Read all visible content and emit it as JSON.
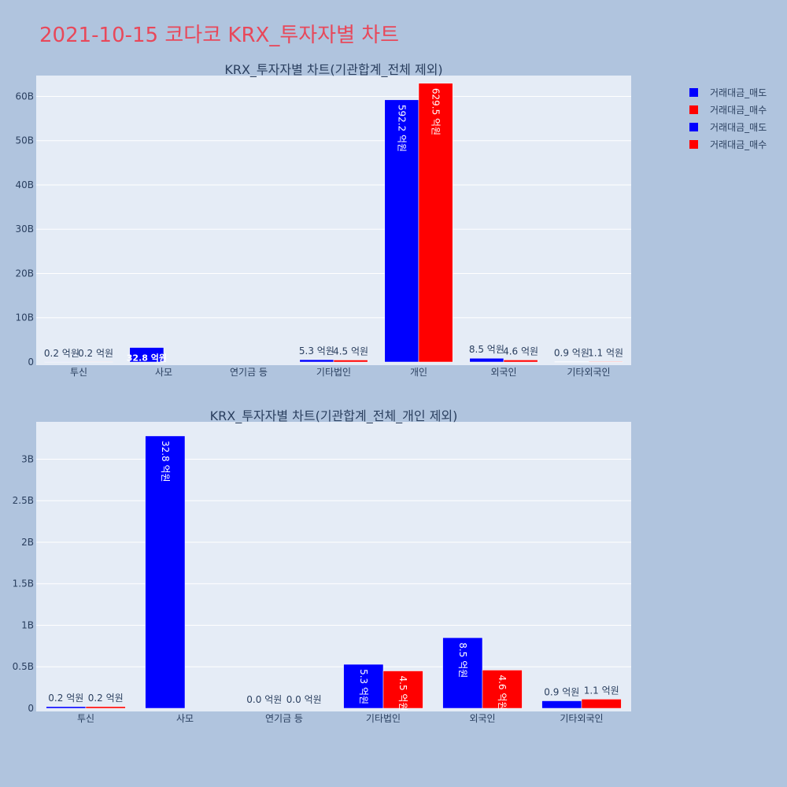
{
  "page": {
    "title": "2021-10-15 코다코 KRX_투자자별 차트"
  },
  "legend": [
    {
      "label": "거래대금_매도",
      "color": "#0000ff"
    },
    {
      "label": "거래대금_매수",
      "color": "#ff0000"
    },
    {
      "label": "거래대금_매도",
      "color": "#0000ff"
    },
    {
      "label": "거래대금_매수",
      "color": "#ff0000"
    }
  ],
  "chart_data": [
    {
      "type": "bar",
      "title": "KRX_투자자별 차트(기관합계_전체 제외)",
      "categories": [
        "투신",
        "사모",
        "연기금 등",
        "기타법인",
        "개인",
        "외국인",
        "기타외국인"
      ],
      "y_ticks": [
        0,
        10,
        20,
        30,
        40,
        50,
        60
      ],
      "y_tick_labels": [
        "0",
        "10B",
        "20B",
        "30B",
        "40B",
        "50B",
        "60B"
      ],
      "ylim": [
        0,
        64.7
      ],
      "unit": "billion KRW",
      "series": [
        {
          "name": "거래대금_매도",
          "color": "#0000ff",
          "values": [
            0.02,
            3.28,
            0,
            0.53,
            59.22,
            0.85,
            0.09
          ],
          "labels": [
            "0.2 억원",
            "32.8 억원",
            "",
            "5.3 억원",
            "592.2 억원",
            "8.5 억원",
            "0.9 억원"
          ]
        },
        {
          "name": "거래대금_매수",
          "color": "#ff0000",
          "values": [
            0.02,
            0,
            0,
            0.45,
            62.95,
            0.46,
            0.11
          ],
          "labels": [
            "0.2 억원",
            "",
            "",
            "4.5 억원",
            "629.5 억원",
            "4.6 억원",
            "1.1 억원"
          ]
        }
      ]
    },
    {
      "type": "bar",
      "title": "KRX_투자자별 차트(기관합계_전체_개인 제외)",
      "categories": [
        "투신",
        "사모",
        "연기금 등",
        "기타법인",
        "외국인",
        "기타외국인"
      ],
      "y_ticks": [
        0,
        0.5,
        1,
        1.5,
        2,
        2.5,
        3
      ],
      "y_tick_labels": [
        "0",
        "0.5B",
        "1B",
        "1.5B",
        "2B",
        "2.5B",
        "3B"
      ],
      "ylim": [
        0,
        3.45
      ],
      "unit": "billion KRW",
      "series": [
        {
          "name": "거래대금_매도",
          "color": "#0000ff",
          "values": [
            0.02,
            3.28,
            0,
            0.53,
            0.85,
            0.09
          ],
          "labels": [
            "0.2 억원",
            "32.8 억원",
            "0.0 억원",
            "5.3 억원",
            "8.5 억원",
            "0.9 억원"
          ]
        },
        {
          "name": "거래대금_매수",
          "color": "#ff0000",
          "values": [
            0.02,
            0,
            0,
            0.45,
            0.46,
            0.11
          ],
          "labels": [
            "0.2 억원",
            "",
            "0.0 억원",
            "4.5 억원",
            "4.6 억원",
            "1.1 억원"
          ]
        }
      ]
    }
  ]
}
